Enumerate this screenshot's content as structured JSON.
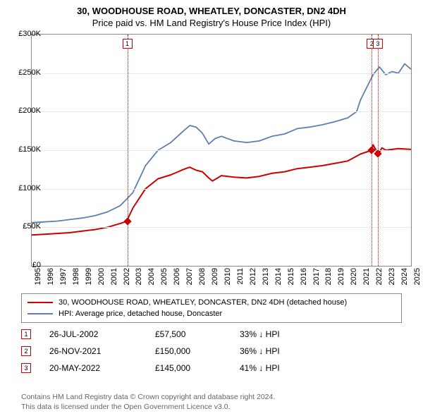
{
  "title": {
    "line1": "30, WOODHOUSE ROAD, WHEATLEY, DONCASTER, DN2 4DH",
    "line2": "Price paid vs. HM Land Registry's House Price Index (HPI)",
    "fontsize": 13,
    "color": "#000000"
  },
  "chart": {
    "type": "line",
    "background_color": "#ffffff",
    "grid_color": "#e8e8e8",
    "border_color": "#888888",
    "x": {
      "min": 1995,
      "max": 2025,
      "ticks": [
        1995,
        1996,
        1997,
        1998,
        1999,
        2000,
        2001,
        2002,
        2003,
        2004,
        2005,
        2006,
        2007,
        2008,
        2009,
        2010,
        2011,
        2012,
        2013,
        2014,
        2015,
        2016,
        2017,
        2018,
        2019,
        2020,
        2021,
        2022,
        2023,
        2024,
        2025
      ],
      "label_fontsize": 11,
      "rotation": -90
    },
    "y": {
      "min": 0,
      "max": 300000,
      "ticks": [
        0,
        50000,
        100000,
        150000,
        200000,
        250000,
        300000
      ],
      "tick_labels": [
        "£0",
        "£50K",
        "£100K",
        "£150K",
        "£200K",
        "£250K",
        "£300K"
      ],
      "label_fontsize": 11
    },
    "series": [
      {
        "name": "property",
        "label": "30, WOODHOUSE ROAD, WHEATLEY, DONCASTER, DN2 4DH (detached house)",
        "color": "#cc0000",
        "line_width": 2,
        "points": [
          [
            1995,
            40000
          ],
          [
            1996,
            41000
          ],
          [
            1997,
            42000
          ],
          [
            1998,
            43000
          ],
          [
            1999,
            45000
          ],
          [
            2000,
            47000
          ],
          [
            2001,
            50000
          ],
          [
            2002,
            55000
          ],
          [
            2002.5,
            57500
          ],
          [
            2003,
            75000
          ],
          [
            2004,
            100000
          ],
          [
            2005,
            113000
          ],
          [
            2006,
            118000
          ],
          [
            2007,
            125000
          ],
          [
            2007.5,
            128000
          ],
          [
            2008,
            124000
          ],
          [
            2008.5,
            122000
          ],
          [
            2009,
            114000
          ],
          [
            2009.3,
            110000
          ],
          [
            2010,
            117000
          ],
          [
            2011,
            115000
          ],
          [
            2012,
            114000
          ],
          [
            2013,
            116000
          ],
          [
            2014,
            120000
          ],
          [
            2015,
            122000
          ],
          [
            2016,
            126000
          ],
          [
            2017,
            128000
          ],
          [
            2018,
            130000
          ],
          [
            2019,
            133000
          ],
          [
            2020,
            136000
          ],
          [
            2021,
            145000
          ],
          [
            2021.9,
            150000
          ],
          [
            2022,
            157000
          ],
          [
            2022.4,
            145000
          ],
          [
            2022.7,
            153000
          ],
          [
            2023,
            150000
          ],
          [
            2024,
            152000
          ],
          [
            2025,
            151000
          ]
        ]
      },
      {
        "name": "hpi",
        "label": "HPI: Average price, detached house, Doncaster",
        "color": "#5b7fb5",
        "line_width": 1.8,
        "points": [
          [
            1995,
            56000
          ],
          [
            1996,
            57000
          ],
          [
            1997,
            58000
          ],
          [
            1998,
            60000
          ],
          [
            1999,
            62000
          ],
          [
            2000,
            65000
          ],
          [
            2001,
            70000
          ],
          [
            2002,
            78000
          ],
          [
            2003,
            95000
          ],
          [
            2004,
            130000
          ],
          [
            2005,
            150000
          ],
          [
            2006,
            160000
          ],
          [
            2007,
            175000
          ],
          [
            2007.5,
            182000
          ],
          [
            2008,
            180000
          ],
          [
            2008.5,
            172000
          ],
          [
            2009,
            158000
          ],
          [
            2009.5,
            165000
          ],
          [
            2010,
            168000
          ],
          [
            2011,
            162000
          ],
          [
            2012,
            160000
          ],
          [
            2013,
            162000
          ],
          [
            2014,
            168000
          ],
          [
            2015,
            171000
          ],
          [
            2016,
            178000
          ],
          [
            2017,
            180000
          ],
          [
            2018,
            183000
          ],
          [
            2019,
            187000
          ],
          [
            2020,
            192000
          ],
          [
            2020.7,
            200000
          ],
          [
            2021,
            215000
          ],
          [
            2022,
            248000
          ],
          [
            2022.5,
            258000
          ],
          [
            2023,
            248000
          ],
          [
            2023.5,
            252000
          ],
          [
            2024,
            250000
          ],
          [
            2024.5,
            262000
          ],
          [
            2025,
            255000
          ]
        ]
      }
    ],
    "event_markers": [
      {
        "n": "1",
        "x": 2002.56,
        "color": "#cc0000",
        "diamond_y": 57500
      },
      {
        "n": "2",
        "x": 2021.9,
        "color": "#cc0000",
        "diamond_y": 150000
      },
      {
        "n": "3",
        "x": 2022.38,
        "color": "#cc0000",
        "diamond_y": 145000
      }
    ]
  },
  "legend": {
    "border_color": "#888888",
    "fontsize": 11,
    "items": [
      {
        "color": "#cc0000",
        "label": "30, WOODHOUSE ROAD, WHEATLEY, DONCASTER, DN2 4DH (detached house)"
      },
      {
        "color": "#5b7fb5",
        "label": "HPI: Average price, detached house, Doncaster"
      }
    ]
  },
  "transactions": {
    "fontsize": 12,
    "arrow": "↓",
    "suffix": "HPI",
    "rows": [
      {
        "n": "1",
        "color": "#cc0000",
        "date": "26-JUL-2002",
        "price": "£57,500",
        "pct": "33%"
      },
      {
        "n": "2",
        "color": "#cc0000",
        "date": "26-NOV-2021",
        "price": "£150,000",
        "pct": "36%"
      },
      {
        "n": "3",
        "color": "#cc0000",
        "date": "20-MAY-2022",
        "price": "£145,000",
        "pct": "41%"
      }
    ]
  },
  "footer": {
    "line1": "Contains HM Land Registry data © Crown copyright and database right 2024.",
    "line2": "This data is licensed under the Open Government Licence v3.0.",
    "color": "#666666",
    "fontsize": 10.5
  }
}
